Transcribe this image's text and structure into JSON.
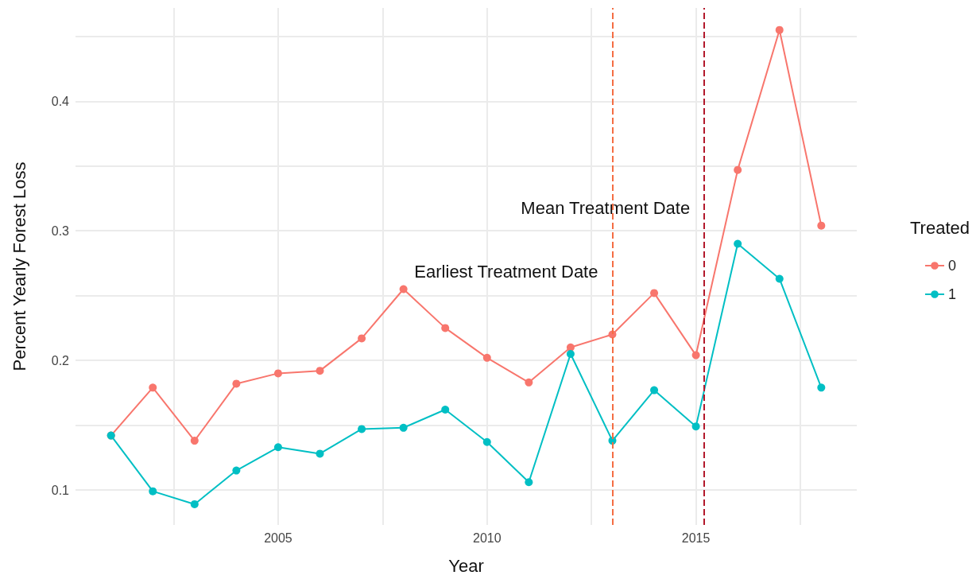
{
  "chart_data": {
    "type": "line",
    "xlabel": "Year",
    "ylabel": "Percent Yearly Forest Loss",
    "legend_title": "Treated",
    "x": [
      2001,
      2002,
      2003,
      2004,
      2005,
      2006,
      2007,
      2008,
      2009,
      2010,
      2011,
      2012,
      2013,
      2014,
      2015,
      2016,
      2017,
      2018
    ],
    "series": [
      {
        "name": "0",
        "color": "#f8766d",
        "values": [
          0.142,
          0.179,
          0.138,
          0.182,
          0.19,
          0.192,
          0.217,
          0.255,
          0.225,
          0.202,
          0.183,
          0.21,
          0.22,
          0.252,
          0.204,
          0.347,
          0.455,
          0.304
        ]
      },
      {
        "name": "1",
        "color": "#00bfc4",
        "values": [
          0.142,
          0.099,
          0.089,
          0.115,
          0.133,
          0.128,
          0.147,
          0.148,
          0.162,
          0.137,
          0.106,
          0.205,
          0.138,
          0.177,
          0.149,
          0.29,
          0.263,
          0.179
        ]
      }
    ],
    "xlim": [
      2000.15,
      2018.85
    ],
    "xticks": [
      {
        "value": 2002.5,
        "label": null
      },
      2005,
      {
        "value": 2007.5,
        "label": null
      },
      2010,
      {
        "value": 2012.5,
        "label": null
      },
      2015,
      {
        "value": 2017.5,
        "label": null
      }
    ],
    "ylim": [
      0.073,
      0.472
    ],
    "yticks": [
      0.1,
      {
        "value": 0.15,
        "label": null
      },
      0.2,
      {
        "value": 0.25,
        "label": null
      },
      0.3,
      {
        "value": 0.35,
        "label": null
      },
      0.4,
      {
        "value": 0.45,
        "label": null
      }
    ],
    "ref_lines": [
      {
        "axis": "x",
        "value": 2013,
        "color": "#f46d43",
        "line_style": "dashed",
        "label": "Earliest Treatment Date"
      },
      {
        "axis": "x",
        "value": 2015.2,
        "color": "#b2182b",
        "line_style": "dashed",
        "label": "Mean Treatment Date"
      }
    ],
    "grid": true,
    "legend": "right",
    "marker": "circle",
    "line_style": "solid"
  }
}
